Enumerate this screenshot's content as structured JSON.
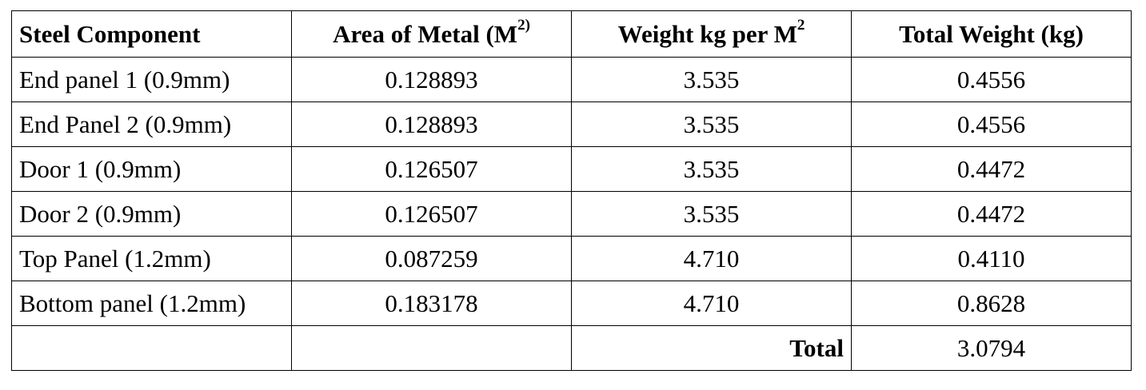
{
  "table": {
    "header": [
      {
        "text": "Steel Component"
      },
      {
        "text": "Area of Metal (M",
        "sup": "2)"
      },
      {
        "text": "Weight kg per M",
        "sup": "2"
      },
      {
        "text": "Total Weight (kg)"
      }
    ],
    "rows": [
      [
        "End panel 1 (0.9mm)",
        "0.128893",
        "3.535",
        "0.4556"
      ],
      [
        "End Panel 2 (0.9mm)",
        "0.128893",
        "3.535",
        "0.4556"
      ],
      [
        "Door 1 (0.9mm)",
        "0.126507",
        "3.535",
        "0.4472"
      ],
      [
        "Door 2 (0.9mm)",
        "0.126507",
        "3.535",
        "0.4472"
      ],
      [
        "Top Panel (1.2mm)",
        "0.087259",
        "4.710",
        "0.4110"
      ],
      [
        "Bottom panel (1.2mm)",
        "0.183178",
        "4.710",
        "0.8628"
      ]
    ],
    "total": {
      "label": "Total",
      "value": "3.0794"
    }
  }
}
